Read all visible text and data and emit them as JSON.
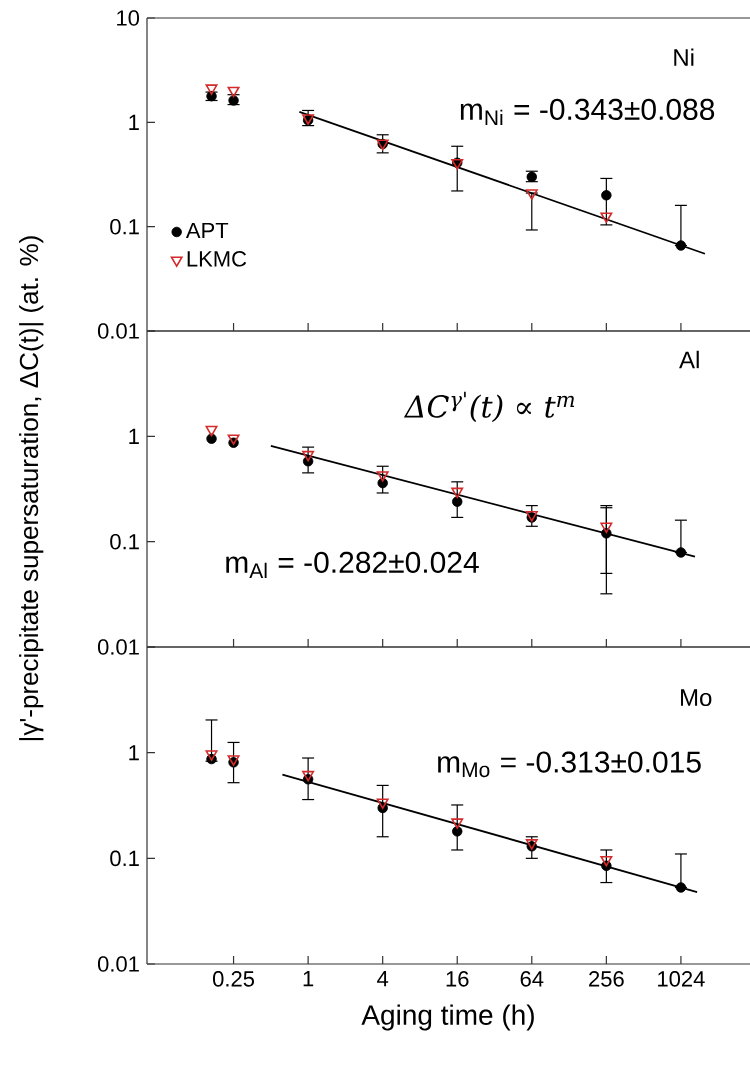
{
  "chart_data": [
    {
      "type": "scatter",
      "title": "Ni",
      "log": "xy",
      "xlim": [
        0.05,
        3700
      ],
      "ylim": [
        0.01,
        10
      ],
      "xticks": [
        0.25,
        1,
        4,
        16,
        64,
        256,
        1024
      ],
      "yticks": [
        0.01,
        0.1,
        1,
        10
      ],
      "tick_labels": "y",
      "legend": "bottom left",
      "annotations": [
        "m$_{Ni}$ = -0.343±0.088"
      ],
      "series": [
        {
          "name": "APT",
          "color": "#000000",
          "marker": "circle",
          "x": [
            0.166,
            0.25,
            1,
            4,
            16,
            64,
            256,
            1024
          ],
          "values": [
            1.78,
            1.62,
            1.05,
            0.62,
            0.41,
            0.3,
            0.2,
            0.066
          ],
          "errors": [
            [
              1.62,
              1.95
            ],
            [
              1.48,
              1.84
            ],
            [
              0.93,
              1.3
            ],
            [
              0.51,
              0.76
            ],
            [
              0.22,
              0.59
            ],
            [
              0.27,
              0.34
            ],
            [
              0.104,
              0.29
            ],
            [
              0.066,
              0.16
            ]
          ]
        },
        {
          "name": "LKMC",
          "color": "#d42a2a",
          "marker": "triangle",
          "x": [
            0.166,
            0.25,
            1,
            4,
            16,
            64,
            256
          ],
          "values": [
            2.13,
            2.02,
            1.1,
            0.63,
            0.41,
            0.21,
            0.126
          ],
          "errors": [
            null,
            null,
            null,
            null,
            null,
            [
              0.093,
              0.21
            ],
            null
          ]
        },
        {
          "type": "line",
          "color": "#000000",
          "marker": "none",
          "x": [
            0.85,
            1600
          ],
          "values": [
            1.26,
            0.055
          ]
        }
      ]
    },
    {
      "type": "scatter",
      "title": "Al",
      "log": "xy",
      "xlim": [
        0.05,
        3700
      ],
      "ylim": [
        0.01,
        10
      ],
      "xticks": [
        0.25,
        1,
        4,
        16,
        64,
        256,
        1024
      ],
      "yticks": [
        0.01,
        0.1,
        1,
        {
          "value": 10,
          "label": null
        }
      ],
      "tick_labels": "y",
      "annotations": [
        "ΔC$^{γ'}$(t) ∝ t$^{m}$",
        "m$_{Al}$ = -0.282±0.024"
      ],
      "series": [
        {
          "color": "#000000",
          "marker": "circle",
          "x": [
            0.166,
            0.25,
            1,
            4,
            16,
            64,
            256,
            1024
          ],
          "values": [
            0.95,
            0.87,
            0.58,
            0.36,
            0.24,
            0.17,
            0.12,
            0.079
          ],
          "errors": [
            null,
            null,
            [
              0.45,
              0.79
            ],
            [
              0.29,
              0.52
            ],
            [
              0.17,
              0.37
            ],
            [
              0.14,
              0.22
            ],
            [
              0.05,
              0.22
            ],
            [
              0.079,
              0.16
            ]
          ]
        },
        {
          "color": "#d42a2a",
          "marker": "triangle",
          "x": [
            0.166,
            0.25,
            1,
            4,
            16,
            64,
            256
          ],
          "values": [
            1.16,
            0.96,
            0.67,
            0.43,
            0.3,
            0.18,
            0.14
          ],
          "errors": [
            null,
            null,
            null,
            null,
            null,
            null,
            [
              0.032,
              0.21
            ]
          ]
        },
        {
          "type": "line",
          "color": "#000000",
          "marker": "none",
          "x": [
            0.5,
            1330
          ],
          "values": [
            0.81,
            0.072
          ]
        }
      ]
    },
    {
      "type": "scatter",
      "title": "Mo",
      "log": "xy",
      "xlim": [
        0.05,
        3700
      ],
      "ylim": [
        0.01,
        10
      ],
      "xticks": [
        0.25,
        1,
        4,
        16,
        64,
        256,
        1024
      ],
      "yticks": [
        0.01,
        0.1,
        1,
        {
          "value": 10,
          "label": null
        }
      ],
      "xlabel": "Aging time (h)",
      "ylabel": "|γ'-precipitate supersaturation, ΔC(t)| (at. %)",
      "annotations": [
        "m$_{Mo}$ = -0.313±0.015"
      ],
      "series": [
        {
          "color": "#000000",
          "marker": "circle",
          "x": [
            0.166,
            0.25,
            1,
            4,
            16,
            64,
            256,
            1024
          ],
          "values": [
            0.87,
            0.81,
            0.56,
            0.3,
            0.18,
            0.13,
            0.085,
            0.053
          ],
          "errors": [
            [
              0.83,
              2.04
            ],
            [
              0.52,
              1.25
            ],
            [
              0.36,
              0.89
            ],
            [
              0.16,
              0.49
            ],
            [
              0.12,
              0.32
            ],
            [
              0.1,
              0.16
            ],
            [
              0.059,
              0.12
            ],
            [
              0.053,
              0.11
            ]
          ]
        },
        {
          "color": "#d42a2a",
          "marker": "triangle",
          "x": [
            0.166,
            0.25,
            1,
            4,
            16,
            64,
            256
          ],
          "values": [
            0.97,
            0.87,
            0.62,
            0.34,
            0.22,
            0.14,
            0.097
          ]
        },
        {
          "type": "line",
          "color": "#000000",
          "marker": "none",
          "x": [
            0.62,
            1384
          ],
          "values": [
            0.62,
            0.048
          ]
        }
      ]
    }
  ]
}
